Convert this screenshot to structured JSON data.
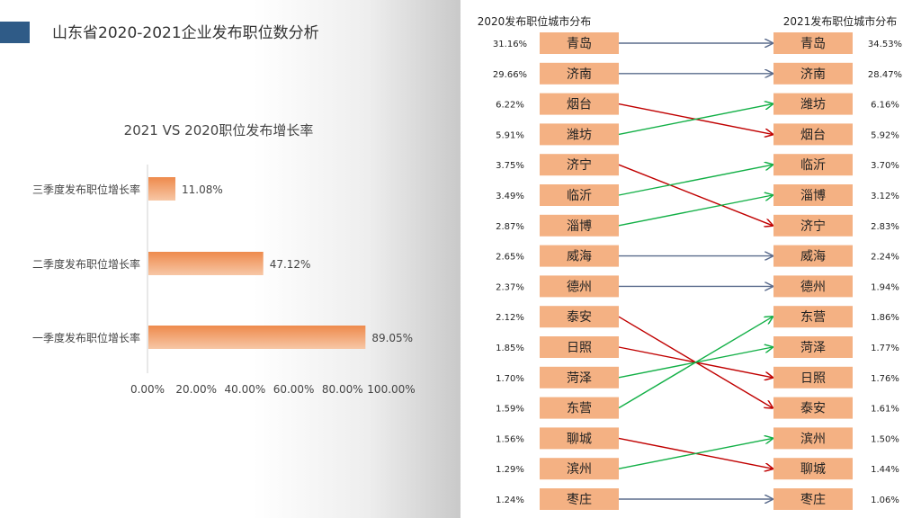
{
  "page": {
    "title": "山东省2020-2021企业发布职位数分析"
  },
  "chart_data": [
    {
      "type": "bar",
      "orientation": "horizontal",
      "title": "2021 VS 2020职位发布增长率",
      "categories": [
        "三季度发布职位增长率",
        "二季度发布职位增长率",
        "一季度发布职位增长率"
      ],
      "values": [
        11.08,
        47.12,
        89.05
      ],
      "value_labels": [
        "11.08%",
        "47.12%",
        "89.05%"
      ],
      "xlim": [
        0,
        100
      ],
      "x_ticks": [
        "0.00%",
        "20.00%",
        "40.00%",
        "60.00%",
        "80.00%",
        "100.00%"
      ],
      "grid": false,
      "colors": {
        "bar_top": "#ee8a4c",
        "bar_bottom": "#f7c7a6"
      }
    },
    {
      "type": "table",
      "left_header": "2020发布职位城市分布",
      "right_header": "2021发布职位城市分布",
      "left": [
        {
          "city": "青岛",
          "pct": "31.16%"
        },
        {
          "city": "济南",
          "pct": "29.66%"
        },
        {
          "city": "烟台",
          "pct": "6.22%"
        },
        {
          "city": "潍坊",
          "pct": "5.91%"
        },
        {
          "city": "济宁",
          "pct": "3.75%"
        },
        {
          "city": "临沂",
          "pct": "3.49%"
        },
        {
          "city": "淄博",
          "pct": "2.87%"
        },
        {
          "city": "威海",
          "pct": "2.65%"
        },
        {
          "city": "德州",
          "pct": "2.37%"
        },
        {
          "city": "泰安",
          "pct": "2.12%"
        },
        {
          "city": "日照",
          "pct": "1.85%"
        },
        {
          "city": "菏泽",
          "pct": "1.70%"
        },
        {
          "city": "东营",
          "pct": "1.59%"
        },
        {
          "city": "聊城",
          "pct": "1.56%"
        },
        {
          "city": "滨州",
          "pct": "1.29%"
        },
        {
          "city": "枣庄",
          "pct": "1.24%"
        }
      ],
      "right": [
        {
          "city": "青岛",
          "pct": "34.53%"
        },
        {
          "city": "济南",
          "pct": "28.47%"
        },
        {
          "city": "潍坊",
          "pct": "6.16%"
        },
        {
          "city": "烟台",
          "pct": "5.92%"
        },
        {
          "city": "临沂",
          "pct": "3.70%"
        },
        {
          "city": "淄博",
          "pct": "3.12%"
        },
        {
          "city": "济宁",
          "pct": "2.83%"
        },
        {
          "city": "威海",
          "pct": "2.24%"
        },
        {
          "city": "德州",
          "pct": "1.94%"
        },
        {
          "city": "东营",
          "pct": "1.86%"
        },
        {
          "city": "菏泽",
          "pct": "1.77%"
        },
        {
          "city": "日照",
          "pct": "1.76%"
        },
        {
          "city": "泰安",
          "pct": "1.61%"
        },
        {
          "city": "滨州",
          "pct": "1.50%"
        },
        {
          "city": "聊城",
          "pct": "1.44%"
        },
        {
          "city": "枣庄",
          "pct": "1.06%"
        }
      ],
      "colors": {
        "box": "#f4b183",
        "rank_up": "#13b047",
        "rank_down": "#c00000",
        "rank_same": "#5a6b8c"
      }
    }
  ]
}
